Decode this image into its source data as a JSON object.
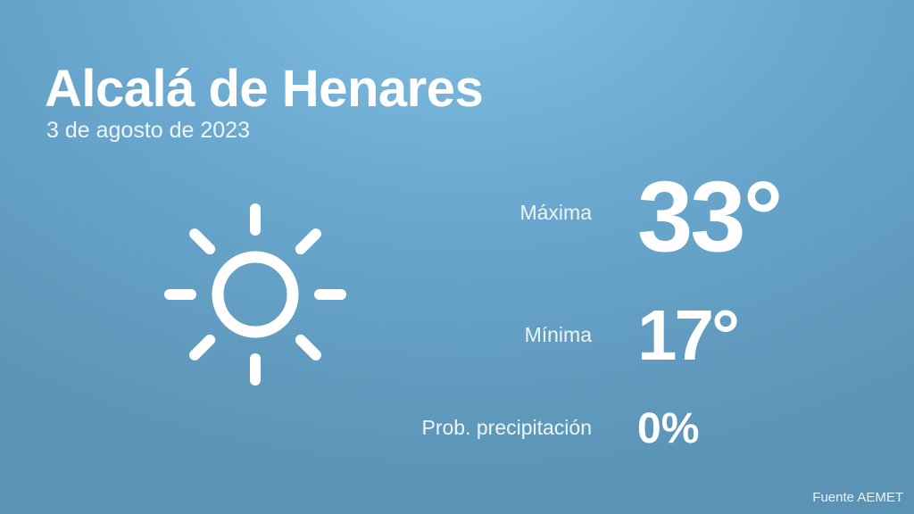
{
  "header": {
    "city": "Alcalá de Henares",
    "date": "3 de agosto de 2023"
  },
  "weather": {
    "icon": "sun-icon",
    "max": {
      "label": "Máxima",
      "value": "33°"
    },
    "min": {
      "label": "Mínima",
      "value": "17°"
    },
    "precip": {
      "label": "Prob. precipitación",
      "value": "0%"
    }
  },
  "footer": {
    "source": "Fuente AEMET"
  },
  "colors": {
    "background_top": "#82c0e3",
    "background_bottom": "#5a93b4",
    "text": "#ffffff"
  }
}
